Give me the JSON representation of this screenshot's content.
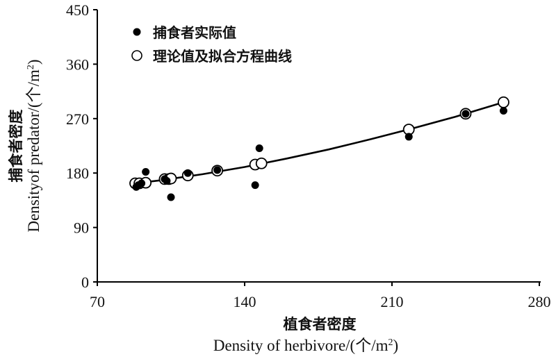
{
  "chart_data": {
    "type": "scatter",
    "xlabel_cn": "植食者密度",
    "xlabel_en": "Density of  herbivore/(个/m",
    "xlabel_sup": "2",
    "xlabel_end": ")",
    "ylabel_cn": "捕食者密度",
    "ylabel_en": "Densityof predator/(个/m",
    "ylabel_sup": "2",
    "ylabel_end": ")",
    "xlim": [
      70,
      280
    ],
    "ylim": [
      0,
      450
    ],
    "x_ticks": [
      "70",
      "140",
      "210",
      "280"
    ],
    "y_ticks": [
      "0",
      "90",
      "180",
      "270",
      "360",
      "450"
    ],
    "legend": {
      "placement": "top-left",
      "actual_label": "捕食者实际值",
      "fit_label": "理论值及拟合方程曲线"
    },
    "series": [
      {
        "name": "捕食者实际值",
        "marker": "filled-circle",
        "points": [
          [
            88.5,
            157
          ],
          [
            89.5,
            160
          ],
          [
            91,
            163
          ],
          [
            93,
            182
          ],
          [
            102,
            170
          ],
          [
            103,
            167
          ],
          [
            105,
            140
          ],
          [
            113,
            180
          ],
          [
            127,
            185
          ],
          [
            145,
            160
          ],
          [
            147,
            221
          ],
          [
            218,
            240
          ],
          [
            245,
            278
          ],
          [
            263,
            283
          ]
        ]
      },
      {
        "name": "理论值及拟合方程曲线",
        "marker": "open-circle",
        "points": [
          [
            88,
            163
          ],
          [
            90,
            163
          ],
          [
            93,
            164
          ],
          [
            102,
            170
          ],
          [
            104,
            170
          ],
          [
            105,
            171
          ],
          [
            113,
            176
          ],
          [
            127,
            184
          ],
          [
            145,
            194
          ],
          [
            148,
            196
          ],
          [
            218,
            252
          ],
          [
            245,
            278
          ],
          [
            263,
            297
          ]
        ],
        "curve": [
          [
            88,
            163
          ],
          [
            100,
            168
          ],
          [
            120,
            178
          ],
          [
            140,
            190
          ],
          [
            160,
            204
          ],
          [
            180,
            219
          ],
          [
            200,
            236
          ],
          [
            220,
            254
          ],
          [
            240,
            273
          ],
          [
            263,
            297
          ]
        ]
      }
    ]
  }
}
